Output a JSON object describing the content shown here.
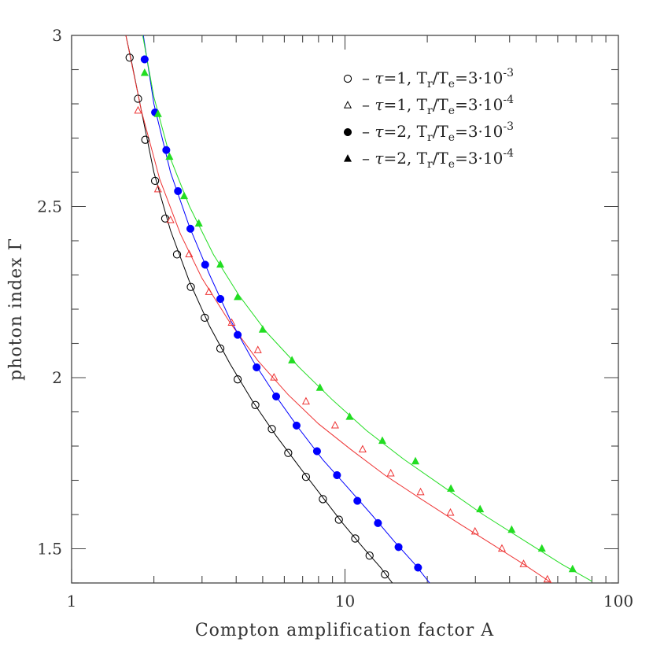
{
  "chart_data": {
    "type": "scatter",
    "title": "",
    "xlabel": "Compton amplification factor A",
    "ylabel": "photon index Γ",
    "x_scale": "log",
    "xlim": [
      1,
      100
    ],
    "ylim": [
      1.4,
      3.0
    ],
    "x_ticks": [
      {
        "value": 1,
        "label": "1"
      },
      {
        "value": 10,
        "label": "10"
      },
      {
        "value": 100,
        "label": "100"
      }
    ],
    "y_ticks": [
      {
        "value": 1.5,
        "label": "1.5"
      },
      {
        "value": 2.0,
        "label": "2"
      },
      {
        "value": 2.5,
        "label": "2.5"
      },
      {
        "value": 3.0,
        "label": "3"
      }
    ],
    "legend_position": "top-right",
    "series": [
      {
        "name": "τ=1, Tr/Te=3·10^-3",
        "tau": "1",
        "ratio_exp": "-3",
        "marker": "open-circle",
        "color": "#000000",
        "points": [
          [
            1.63,
            2.935
          ],
          [
            1.75,
            2.815
          ],
          [
            1.86,
            2.695
          ],
          [
            2.02,
            2.575
          ],
          [
            2.2,
            2.465
          ],
          [
            2.43,
            2.36
          ],
          [
            2.73,
            2.265
          ],
          [
            3.07,
            2.175
          ],
          [
            3.5,
            2.085
          ],
          [
            4.05,
            1.995
          ],
          [
            4.7,
            1.92
          ],
          [
            5.4,
            1.85
          ],
          [
            6.2,
            1.78
          ],
          [
            7.2,
            1.71
          ],
          [
            8.3,
            1.645
          ],
          [
            9.5,
            1.585
          ],
          [
            10.9,
            1.53
          ],
          [
            12.3,
            1.48
          ],
          [
            14.0,
            1.425
          ]
        ],
        "curve": [
          [
            1.58,
            3.0
          ],
          [
            1.65,
            2.93
          ],
          [
            1.8,
            2.78
          ],
          [
            2.0,
            2.6
          ],
          [
            2.3,
            2.43
          ],
          [
            2.7,
            2.28
          ],
          [
            3.2,
            2.15
          ],
          [
            3.8,
            2.04
          ],
          [
            4.6,
            1.93
          ],
          [
            5.6,
            1.83
          ],
          [
            6.8,
            1.74
          ],
          [
            8.2,
            1.655
          ],
          [
            9.8,
            1.575
          ],
          [
            11.6,
            1.505
          ],
          [
            13.5,
            1.445
          ],
          [
            14.9,
            1.4
          ]
        ]
      },
      {
        "name": "τ=1, Tr/Te=3·10^-4",
        "tau": "1",
        "ratio_exp": "-4",
        "marker": "open-triangle",
        "color": "#ee3333",
        "points": [
          [
            1.75,
            2.78
          ],
          [
            2.07,
            2.55
          ],
          [
            2.3,
            2.46
          ],
          [
            2.69,
            2.36
          ],
          [
            3.18,
            2.25
          ],
          [
            3.85,
            2.16
          ],
          [
            4.8,
            2.08
          ],
          [
            5.5,
            2.0
          ],
          [
            7.2,
            1.93
          ],
          [
            9.2,
            1.86
          ],
          [
            11.6,
            1.79
          ],
          [
            14.7,
            1.72
          ],
          [
            18.9,
            1.665
          ],
          [
            24.3,
            1.605
          ],
          [
            29.9,
            1.55
          ],
          [
            37.5,
            1.5
          ],
          [
            45.0,
            1.455
          ],
          [
            55.0,
            1.41
          ]
        ],
        "curve": [
          [
            1.58,
            3.0
          ],
          [
            1.8,
            2.78
          ],
          [
            2.1,
            2.58
          ],
          [
            2.5,
            2.42
          ],
          [
            3.0,
            2.29
          ],
          [
            3.8,
            2.16
          ],
          [
            4.8,
            2.05
          ],
          [
            6.2,
            1.95
          ],
          [
            8.0,
            1.865
          ],
          [
            10.5,
            1.79
          ],
          [
            14.0,
            1.715
          ],
          [
            19.0,
            1.645
          ],
          [
            26.0,
            1.575
          ],
          [
            35.0,
            1.51
          ],
          [
            45.0,
            1.455
          ],
          [
            57.0,
            1.4
          ]
        ]
      },
      {
        "name": "τ=2, Tr/Te=3·10^-3",
        "tau": "2",
        "ratio_exp": "-3",
        "marker": "filled-circle",
        "color": "#0000ff",
        "points": [
          [
            1.85,
            2.93
          ],
          [
            2.02,
            2.775
          ],
          [
            2.22,
            2.665
          ],
          [
            2.45,
            2.545
          ],
          [
            2.72,
            2.435
          ],
          [
            3.08,
            2.33
          ],
          [
            3.5,
            2.23
          ],
          [
            4.05,
            2.125
          ],
          [
            4.75,
            2.03
          ],
          [
            5.6,
            1.945
          ],
          [
            6.65,
            1.86
          ],
          [
            7.9,
            1.785
          ],
          [
            9.35,
            1.715
          ],
          [
            11.1,
            1.64
          ],
          [
            13.2,
            1.575
          ],
          [
            15.7,
            1.505
          ],
          [
            18.5,
            1.445
          ]
        ],
        "curve": [
          [
            1.83,
            3.0
          ],
          [
            2.0,
            2.8
          ],
          [
            2.3,
            2.6
          ],
          [
            2.7,
            2.44
          ],
          [
            3.2,
            2.3
          ],
          [
            3.8,
            2.17
          ],
          [
            4.6,
            2.05
          ],
          [
            5.6,
            1.945
          ],
          [
            6.8,
            1.85
          ],
          [
            8.3,
            1.76
          ],
          [
            10.2,
            1.68
          ],
          [
            12.5,
            1.6
          ],
          [
            15.2,
            1.52
          ],
          [
            18.0,
            1.455
          ],
          [
            20.4,
            1.4
          ]
        ]
      },
      {
        "name": "τ=2, Tr/Te=3·10^-4",
        "tau": "2",
        "ratio_exp": "-4",
        "marker": "filled-triangle",
        "color": "#22dd22",
        "points": [
          [
            1.85,
            2.89
          ],
          [
            2.07,
            2.77
          ],
          [
            2.28,
            2.645
          ],
          [
            2.58,
            2.53
          ],
          [
            2.92,
            2.45
          ],
          [
            3.5,
            2.33
          ],
          [
            4.05,
            2.235
          ],
          [
            5.0,
            2.14
          ],
          [
            6.4,
            2.05
          ],
          [
            8.1,
            1.97
          ],
          [
            10.4,
            1.885
          ],
          [
            13.7,
            1.815
          ],
          [
            18.1,
            1.755
          ],
          [
            24.4,
            1.675
          ],
          [
            31.2,
            1.615
          ],
          [
            40.7,
            1.555
          ],
          [
            52.5,
            1.5
          ],
          [
            68.0,
            1.44
          ]
        ],
        "curve": [
          [
            1.82,
            3.0
          ],
          [
            2.0,
            2.82
          ],
          [
            2.3,
            2.64
          ],
          [
            2.7,
            2.5
          ],
          [
            3.3,
            2.36
          ],
          [
            4.1,
            2.24
          ],
          [
            5.2,
            2.13
          ],
          [
            6.8,
            2.03
          ],
          [
            9.0,
            1.935
          ],
          [
            12.0,
            1.845
          ],
          [
            16.5,
            1.76
          ],
          [
            23.0,
            1.68
          ],
          [
            32.0,
            1.6
          ],
          [
            45.0,
            1.525
          ],
          [
            62.0,
            1.455
          ],
          [
            80.0,
            1.405
          ]
        ]
      }
    ]
  }
}
